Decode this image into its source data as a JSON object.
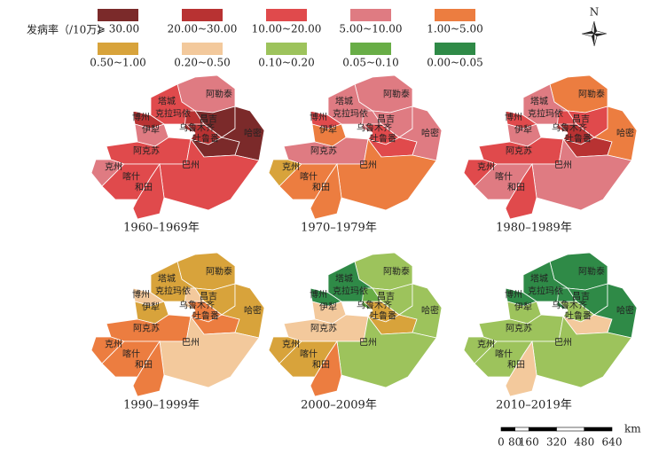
{
  "legend": {
    "title": "发病率（/10万）",
    "items": [
      {
        "label": "⩾ 30.00",
        "color": "#7b2a2a"
      },
      {
        "label": "20.00~30.00",
        "color": "#b83232"
      },
      {
        "label": "10.00~20.00",
        "color": "#e04a4c"
      },
      {
        "label": "5.00~10.00",
        "color": "#df7b82"
      },
      {
        "label": "1.00~5.00",
        "color": "#ec7d40"
      },
      {
        "label": "0.50~1.00",
        "color": "#d8a33b"
      },
      {
        "label": "0.20~0.50",
        "color": "#f3c99c"
      },
      {
        "label": "0.10~0.20",
        "color": "#9dc35c"
      },
      {
        "label": "0.05~0.10",
        "color": "#68ad46"
      },
      {
        "label": "0.00~0.05",
        "color": "#2f8a47"
      }
    ]
  },
  "regions": [
    "阿勒泰",
    "塔城",
    "克拉玛依",
    "博州",
    "伊犁",
    "昌吉",
    "乌鲁木齐",
    "吐鲁番",
    "哈密",
    "阿克苏",
    "巴州",
    "克州",
    "喀什",
    "和田"
  ],
  "maps": [
    {
      "title": "1960–1969年",
      "classes": [
        3,
        2,
        1,
        1,
        3,
        0,
        1,
        0,
        0,
        2,
        2,
        3,
        2,
        2
      ]
    },
    {
      "title": "1970–1979年",
      "classes": [
        3,
        3,
        3,
        2,
        4,
        3,
        2,
        2,
        3,
        3,
        4,
        5,
        4,
        4
      ]
    },
    {
      "title": "1980–1989年",
      "classes": [
        4,
        3,
        2,
        2,
        3,
        2,
        1,
        1,
        4,
        2,
        3,
        2,
        3,
        2
      ]
    },
    {
      "title": "1990–1999年",
      "classes": [
        5,
        5,
        6,
        6,
        5,
        5,
        4,
        4,
        5,
        4,
        6,
        4,
        4,
        4
      ]
    },
    {
      "title": "2000–2009年",
      "classes": [
        7,
        9,
        8,
        9,
        6,
        7,
        5,
        5,
        7,
        6,
        7,
        5,
        5,
        4
      ]
    },
    {
      "title": "2010–2019年",
      "classes": [
        9,
        9,
        9,
        9,
        7,
        9,
        7,
        6,
        9,
        7,
        7,
        7,
        7,
        6
      ]
    }
  ],
  "north": "N",
  "scale": {
    "unit": "km",
    "ticks": [
      0,
      80,
      160,
      320,
      480,
      640
    ]
  }
}
